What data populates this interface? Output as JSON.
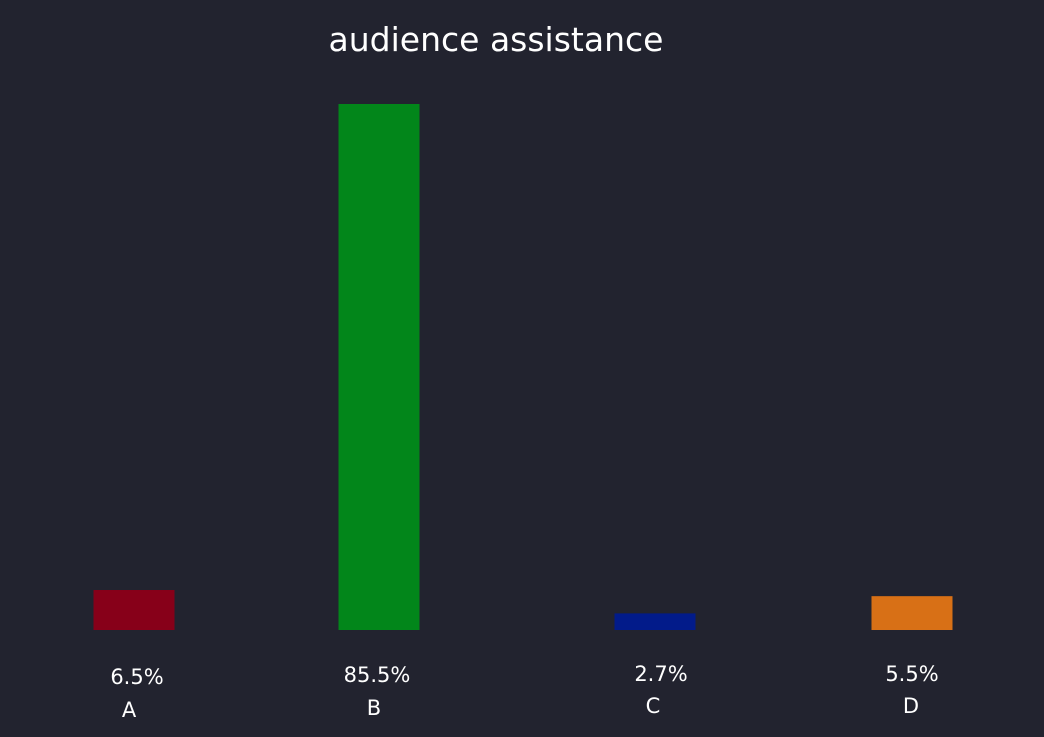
{
  "chart_data": {
    "type": "bar",
    "title": "audience assistance",
    "categories": [
      "A",
      "B",
      "C",
      "D"
    ],
    "values": [
      6.5,
      85.5,
      2.7,
      5.5
    ],
    "value_labels": [
      "6.5%",
      "85.5%",
      "2.7%",
      "5.5%"
    ],
    "unit": "%",
    "xlabel": "",
    "ylabel": "",
    "ylim": [
      0,
      85.5
    ],
    "grid": false,
    "legend": "none",
    "colors": [
      "#870019",
      "#02861a",
      "#021b8a",
      "#d87016"
    ],
    "background": "#22232f"
  }
}
